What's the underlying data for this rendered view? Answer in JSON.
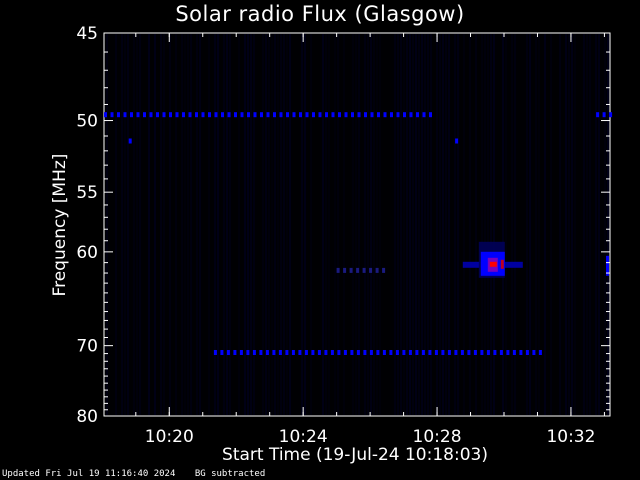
{
  "chart_data": {
    "type": "heatmap",
    "title": "Solar radio Flux (Glasgow)",
    "ylabel": "Frequency [MHz]",
    "xlabel": "Start Time (19-Jul-24 10:18:03)",
    "y_scale": "log",
    "ylim": [
      45,
      80
    ],
    "y_ticks": [
      45,
      50,
      55,
      60,
      70,
      80
    ],
    "x_ticks": [
      "10:20",
      "10:24",
      "10:28",
      "10:32"
    ],
    "xlim": [
      "10:18:03",
      "10:33:10"
    ],
    "colormap": [
      "#000000",
      "#00006e",
      "#0000ff",
      "#ff0000"
    ],
    "features": [
      {
        "kind": "dotted_line",
        "freq_mhz": 49.6,
        "t_start": "10:18:03",
        "t_end": "10:27:55",
        "color": "#0000ff"
      },
      {
        "kind": "dotted_line",
        "freq_mhz": 49.6,
        "t_start": "10:32:45",
        "t_end": "10:33:10",
        "color": "#0000ff"
      },
      {
        "kind": "dot",
        "freq_mhz": 51.3,
        "time": "10:18:50",
        "color": "#0000ff"
      },
      {
        "kind": "dot",
        "freq_mhz": 51.3,
        "time": "10:28:35",
        "color": "#0000ff"
      },
      {
        "kind": "dotted_line",
        "freq_mhz": 70.8,
        "t_start": "10:21:20",
        "t_end": "10:31:05",
        "color": "#0000ff"
      },
      {
        "kind": "dotted_line",
        "freq_mhz": 61.7,
        "t_start": "10:25:00",
        "t_end": "10:26:30",
        "color": "#1a1a80"
      },
      {
        "kind": "burst",
        "freq_mhz": 61.3,
        "time": "10:29:40",
        "peak_color": "#ff0000"
      },
      {
        "kind": "edge_feature",
        "freq_mhz": 61.3,
        "time": "10:33:08",
        "color": "#0000ff"
      }
    ]
  },
  "footer": {
    "updated": "Updated Fri Jul 19 11:16:40 2024",
    "note": "BG subtracted"
  }
}
